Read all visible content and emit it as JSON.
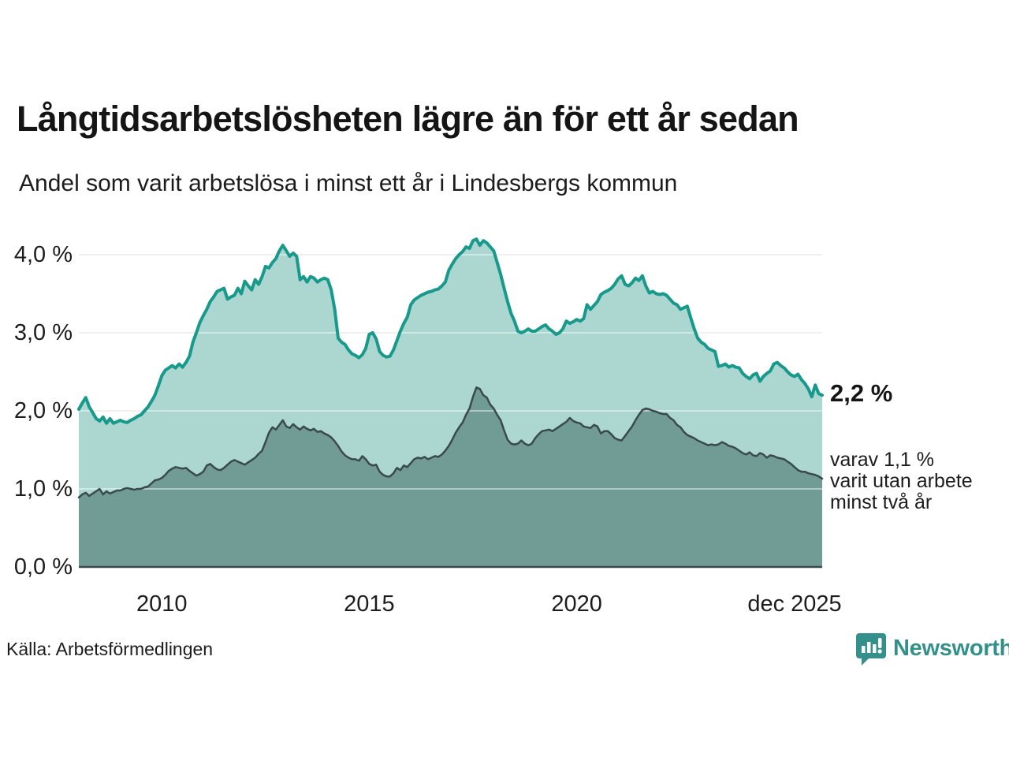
{
  "header": {
    "title": "Långtidsarbetslösheten lägre än för ett år sedan",
    "subtitle": "Andel som varit arbetslösa i minst ett år i Lindesbergs kommun"
  },
  "chart_data": {
    "type": "area",
    "title": "Långtidsarbetslösheten lägre än för ett år sedan",
    "subtitle": "Andel som varit arbetslösa i minst ett år i Lindesbergs kommun",
    "unit": "%",
    "x_start": "2008-01",
    "x_end": "2025-12",
    "x_frequency": "monthly",
    "ylim": [
      0,
      4.4
    ],
    "grid": "horizontal",
    "y_ticks": [
      {
        "label": "4,0 %",
        "value": 4.0
      },
      {
        "label": "3,0 %",
        "value": 3.0
      },
      {
        "label": "2,0 %",
        "value": 2.0
      },
      {
        "label": "1,0 %",
        "value": 1.0
      },
      {
        "label": "0,0 %",
        "value": 0.0
      }
    ],
    "x_ticks": [
      {
        "label": "2010",
        "month_index": 24
      },
      {
        "label": "2015",
        "month_index": 84
      },
      {
        "label": "2020",
        "month_index": 144
      },
      {
        "label": "dec 2025",
        "month_index": 215
      }
    ],
    "series": [
      {
        "name": "Andel som varit arbetslösa minst ett år",
        "line_color": "#17998b",
        "fill_color": "#abd7d0",
        "line_width": 4,
        "latest_value": 2.2,
        "values": [
          2.02,
          2.1,
          2.17,
          2.05,
          1.98,
          1.9,
          1.87,
          1.92,
          1.84,
          1.9,
          1.84,
          1.86,
          1.88,
          1.86,
          1.85,
          1.88,
          1.9,
          1.93,
          1.95,
          2.0,
          2.05,
          2.12,
          2.2,
          2.32,
          2.45,
          2.52,
          2.55,
          2.58,
          2.55,
          2.6,
          2.56,
          2.62,
          2.7,
          2.88,
          3.0,
          3.13,
          3.22,
          3.3,
          3.4,
          3.46,
          3.53,
          3.55,
          3.57,
          3.43,
          3.46,
          3.48,
          3.57,
          3.5,
          3.66,
          3.6,
          3.55,
          3.68,
          3.62,
          3.72,
          3.85,
          3.83,
          3.9,
          3.95,
          4.05,
          4.12,
          4.05,
          3.98,
          4.02,
          3.98,
          3.68,
          3.72,
          3.65,
          3.72,
          3.7,
          3.65,
          3.68,
          3.7,
          3.68,
          3.55,
          3.3,
          2.93,
          2.88,
          2.85,
          2.78,
          2.73,
          2.71,
          2.68,
          2.72,
          2.8,
          2.98,
          3.0,
          2.92,
          2.76,
          2.71,
          2.69,
          2.7,
          2.78,
          2.9,
          3.02,
          3.12,
          3.2,
          3.36,
          3.42,
          3.45,
          3.48,
          3.5,
          3.52,
          3.53,
          3.55,
          3.56,
          3.6,
          3.65,
          3.8,
          3.88,
          3.95,
          4.0,
          4.04,
          4.1,
          4.08,
          4.18,
          4.2,
          4.12,
          4.18,
          4.15,
          4.1,
          4.05,
          3.9,
          3.75,
          3.57,
          3.4,
          3.25,
          3.15,
          3.02,
          3.0,
          3.02,
          3.05,
          3.02,
          3.02,
          3.05,
          3.08,
          3.1,
          3.05,
          3.02,
          2.98,
          3.0,
          3.05,
          3.15,
          3.12,
          3.14,
          3.17,
          3.15,
          3.18,
          3.36,
          3.3,
          3.35,
          3.4,
          3.49,
          3.52,
          3.54,
          3.57,
          3.62,
          3.69,
          3.73,
          3.62,
          3.6,
          3.64,
          3.7,
          3.67,
          3.73,
          3.6,
          3.51,
          3.53,
          3.5,
          3.49,
          3.5,
          3.48,
          3.43,
          3.38,
          3.36,
          3.3,
          3.32,
          3.34,
          3.19,
          3.05,
          2.93,
          2.88,
          2.85,
          2.8,
          2.78,
          2.76,
          2.57,
          2.58,
          2.6,
          2.56,
          2.58,
          2.56,
          2.55,
          2.48,
          2.44,
          2.41,
          2.46,
          2.48,
          2.38,
          2.44,
          2.48,
          2.51,
          2.6,
          2.62,
          2.58,
          2.55,
          2.5,
          2.46,
          2.44,
          2.47,
          2.4,
          2.35,
          2.28,
          2.18,
          2.33,
          2.22,
          2.2
        ]
      },
      {
        "name": "varav utan arbete minst två år",
        "line_color": "#3a4a4a",
        "fill_color": "#719b95",
        "line_width": 2.5,
        "latest_value": 1.1,
        "values": [
          0.89,
          0.93,
          0.95,
          0.91,
          0.94,
          0.97,
          1.0,
          0.93,
          0.97,
          0.94,
          0.96,
          0.98,
          0.98,
          1.0,
          1.01,
          1.0,
          0.99,
          1.0,
          1.0,
          1.02,
          1.03,
          1.07,
          1.11,
          1.12,
          1.14,
          1.18,
          1.23,
          1.26,
          1.28,
          1.27,
          1.26,
          1.27,
          1.23,
          1.2,
          1.17,
          1.19,
          1.22,
          1.3,
          1.32,
          1.28,
          1.25,
          1.24,
          1.27,
          1.31,
          1.35,
          1.37,
          1.35,
          1.33,
          1.31,
          1.34,
          1.37,
          1.4,
          1.45,
          1.49,
          1.6,
          1.72,
          1.79,
          1.76,
          1.82,
          1.88,
          1.8,
          1.78,
          1.83,
          1.79,
          1.76,
          1.8,
          1.77,
          1.75,
          1.77,
          1.73,
          1.74,
          1.71,
          1.69,
          1.66,
          1.61,
          1.55,
          1.48,
          1.43,
          1.4,
          1.38,
          1.38,
          1.36,
          1.42,
          1.38,
          1.32,
          1.3,
          1.31,
          1.22,
          1.18,
          1.16,
          1.16,
          1.2,
          1.27,
          1.24,
          1.3,
          1.28,
          1.33,
          1.38,
          1.4,
          1.39,
          1.41,
          1.38,
          1.4,
          1.42,
          1.41,
          1.44,
          1.49,
          1.55,
          1.63,
          1.72,
          1.79,
          1.85,
          1.95,
          2.03,
          2.18,
          2.3,
          2.28,
          2.2,
          2.17,
          2.08,
          2.03,
          1.95,
          1.88,
          1.75,
          1.63,
          1.58,
          1.57,
          1.58,
          1.62,
          1.58,
          1.56,
          1.58,
          1.65,
          1.7,
          1.74,
          1.75,
          1.76,
          1.74,
          1.77,
          1.8,
          1.83,
          1.86,
          1.91,
          1.87,
          1.85,
          1.84,
          1.8,
          1.79,
          1.78,
          1.82,
          1.8,
          1.71,
          1.74,
          1.74,
          1.7,
          1.65,
          1.63,
          1.62,
          1.68,
          1.74,
          1.8,
          1.88,
          1.95,
          2.01,
          2.03,
          2.02,
          2.0,
          1.99,
          1.97,
          1.96,
          1.96,
          1.91,
          1.88,
          1.82,
          1.79,
          1.73,
          1.69,
          1.67,
          1.65,
          1.62,
          1.6,
          1.58,
          1.56,
          1.57,
          1.56,
          1.57,
          1.6,
          1.58,
          1.55,
          1.54,
          1.52,
          1.49,
          1.46,
          1.44,
          1.47,
          1.43,
          1.42,
          1.46,
          1.44,
          1.4,
          1.43,
          1.42,
          1.4,
          1.39,
          1.38,
          1.35,
          1.32,
          1.28,
          1.24,
          1.22,
          1.22,
          1.2,
          1.19,
          1.18,
          1.16,
          1.13
        ]
      }
    ]
  },
  "annotations": {
    "latest_total": "2,2 %",
    "latest_two_years": "varav 1,1 %\nvarit utan arbete\nminst två år"
  },
  "footer": {
    "source": "Källa: Arbetsförmedlingen",
    "brand": "Newsworthy"
  },
  "colors": {
    "series_total_line": "#17998b",
    "series_total_fill": "#abd7d0",
    "series_two_year_line": "#3a4a4a",
    "series_two_year_fill": "#719b95",
    "gridline": "#e3e3e3",
    "axis_line": "#3a4a4a",
    "brand_teal": "#33908a",
    "text": "#1a1a1a"
  }
}
